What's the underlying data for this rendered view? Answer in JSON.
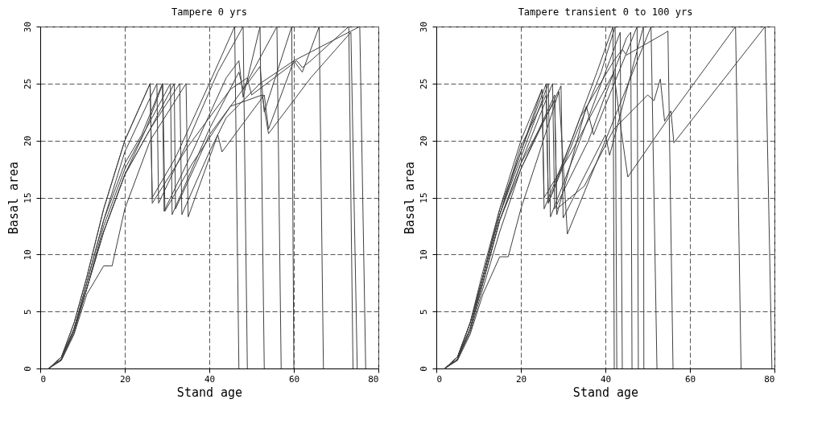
{
  "chart_data": [
    {
      "type": "line",
      "title": "Tampere 0 yrs",
      "xlabel": "Stand age",
      "ylabel": "Basal area",
      "xlim": [
        0,
        80
      ],
      "ylim": [
        0,
        30
      ],
      "xticks": [
        0,
        20,
        40,
        60,
        80
      ],
      "yticks": [
        0,
        5,
        10,
        15,
        20,
        25,
        30
      ],
      "grid": true,
      "series": [
        {
          "color": "#404040",
          "x": [
            2,
            5,
            8,
            11,
            15,
            20,
            26,
            26.5,
            32,
            40,
            46,
            47
          ],
          "values": [
            0,
            1,
            4,
            8,
            14,
            20,
            25,
            15,
            18.5,
            25,
            30,
            0
          ]
        },
        {
          "color": "#404040",
          "x": [
            2,
            5,
            8,
            11,
            15,
            20,
            27.6,
            28,
            35,
            42,
            48,
            49
          ],
          "values": [
            0,
            1,
            3.5,
            7.5,
            13,
            19,
            25,
            14.5,
            20,
            26,
            30,
            0
          ]
        },
        {
          "color": "#404040",
          "x": [
            2,
            5,
            8,
            11,
            15,
            20,
            24,
            28.9,
            29.3,
            36,
            44,
            47,
            48,
            52,
            53
          ],
          "values": [
            0,
            0.8,
            3.5,
            7.5,
            13,
            18,
            20.5,
            25,
            13.8,
            19,
            25.5,
            27,
            23.8,
            30,
            0
          ]
        },
        {
          "color": "#404040",
          "x": [
            2,
            5,
            8,
            11,
            15,
            20,
            25,
            30.8,
            31.2,
            40,
            47,
            48,
            56,
            57
          ],
          "values": [
            0,
            0.8,
            3.5,
            7,
            12.5,
            17.5,
            21,
            25,
            13.5,
            21,
            26,
            24.5,
            30,
            0
          ]
        },
        {
          "color": "#404040",
          "x": [
            2,
            5,
            8,
            11,
            15,
            20,
            26,
            31.7,
            32,
            40,
            52,
            53,
            59.5,
            60
          ],
          "values": [
            0,
            0.8,
            3.2,
            7,
            12,
            17,
            21,
            25,
            14,
            20.5,
            26.5,
            22.5,
            30,
            0
          ]
        },
        {
          "color": "#404040",
          "x": [
            2,
            5,
            8,
            11,
            15,
            17,
            20,
            26,
            34.5,
            35,
            42,
            43,
            53,
            54,
            60,
            62,
            66,
            67
          ],
          "values": [
            0,
            0.7,
            3,
            6.5,
            9,
            9,
            14,
            20,
            25,
            13.3,
            20.5,
            19,
            24,
            21,
            27,
            26,
            30,
            0
          ]
        },
        {
          "color": "#404040",
          "x": [
            2,
            5,
            8,
            11,
            15,
            20,
            26,
            26.5,
            35,
            45,
            49,
            50,
            60.7,
            62,
            64,
            73,
            74
          ],
          "values": [
            0,
            1,
            4,
            8,
            14,
            20,
            25,
            14.5,
            19.5,
            24.5,
            25.5,
            24,
            27,
            26.4,
            27,
            30,
            0
          ]
        },
        {
          "color": "#404040",
          "x": [
            2,
            5,
            8,
            11,
            15,
            20,
            25,
            29,
            29.5,
            36,
            45,
            52.5,
            54,
            64,
            73.5,
            75
          ],
          "values": [
            0,
            0.8,
            3.5,
            7,
            12,
            17,
            21,
            25,
            13.8,
            18,
            23,
            24,
            20.6,
            25.5,
            29.5,
            0
          ]
        },
        {
          "color": "#404040",
          "x": [
            2,
            5,
            8,
            11,
            15,
            20,
            26,
            33,
            33.5,
            40,
            44,
            52,
            60,
            75.6,
            77
          ],
          "values": [
            0,
            0.8,
            3.2,
            7,
            12,
            17,
            21,
            25,
            13.5,
            19,
            22,
            25,
            27,
            30,
            0
          ]
        }
      ]
    },
    {
      "type": "line",
      "title": "Tampere transient 0 to 100 yrs",
      "xlabel": "Stand age",
      "ylabel": "Basal area",
      "xlim": [
        0,
        80
      ],
      "ylim": [
        0,
        30
      ],
      "xticks": [
        0,
        20,
        40,
        60,
        80
      ],
      "yticks": [
        0,
        5,
        10,
        15,
        20,
        25,
        30
      ],
      "grid": true,
      "series": [
        {
          "color": "#404040",
          "x": [
            2,
            5,
            8,
            11,
            15,
            20,
            25,
            25.5,
            32,
            38,
            41.8,
            42.1
          ],
          "values": [
            0,
            1,
            4,
            8.5,
            14,
            20,
            24.5,
            14,
            20,
            26,
            30,
            0
          ]
        },
        {
          "color": "#404040",
          "x": [
            2,
            5,
            8,
            11,
            15,
            20,
            26,
            26.5,
            33,
            39,
            42.3,
            42.7
          ],
          "values": [
            0,
            1,
            4,
            8,
            13.5,
            19,
            25,
            14.5,
            20.5,
            26,
            30,
            0
          ]
        },
        {
          "color": "#404040",
          "x": [
            2,
            5,
            8,
            11,
            15,
            20,
            26.5,
            27,
            35,
            41,
            43.5,
            44
          ],
          "values": [
            0,
            1,
            3.5,
            8,
            13.5,
            18.5,
            25,
            13.3,
            21,
            27,
            29.5,
            0
          ]
        },
        {
          "color": "#404040",
          "x": [
            2,
            5,
            8,
            11,
            15,
            20,
            27.5,
            28,
            36,
            45,
            46,
            46.3
          ],
          "values": [
            0,
            0.8,
            3.5,
            7.5,
            13,
            18,
            25,
            14,
            20,
            29,
            29.5,
            0
          ]
        },
        {
          "color": "#404040",
          "x": [
            2,
            5,
            8,
            11,
            15,
            20,
            28,
            28.5,
            35.5,
            37.2,
            47.5,
            47.8
          ],
          "values": [
            0,
            0.8,
            3.5,
            7.5,
            13,
            17.5,
            24,
            13.5,
            23,
            20.5,
            30,
            0
          ]
        },
        {
          "color": "#404040",
          "x": [
            2,
            5,
            8,
            11,
            15,
            20,
            29.5,
            30,
            40,
            41,
            49,
            49.1
          ],
          "values": [
            0,
            0.8,
            3.2,
            7,
            12,
            17.5,
            24.8,
            13.2,
            20.5,
            18.7,
            30,
            0
          ]
        },
        {
          "color": "#404040",
          "x": [
            2,
            5,
            8,
            11,
            15,
            17,
            20,
            24,
            29,
            31,
            40,
            50.8,
            52.2
          ],
          "values": [
            0,
            0.7,
            3,
            6.5,
            9.8,
            9.8,
            14,
            18.5,
            24.3,
            11.8,
            20,
            30,
            0
          ]
        },
        {
          "color": "#404040",
          "x": [
            2,
            5,
            8,
            11,
            15,
            20,
            26,
            26.5,
            34,
            42,
            44,
            45,
            53.5,
            54.8,
            56
          ],
          "values": [
            0,
            1,
            4,
            8,
            13.5,
            19.5,
            24,
            14.5,
            22,
            27,
            28,
            27.5,
            29.3,
            29.6,
            0
          ]
        },
        {
          "color": "#404040",
          "x": [
            2,
            5,
            8,
            11,
            15,
            20,
            25,
            25.5,
            32,
            42,
            43.7,
            45.3,
            55,
            70.8,
            72.1
          ],
          "values": [
            0,
            1,
            4,
            8,
            14,
            19,
            24.5,
            15,
            19,
            26,
            21,
            16.8,
            22,
            30,
            0
          ]
        },
        {
          "color": "#404040",
          "x": [
            2,
            5,
            8,
            11,
            15,
            20,
            28,
            28.5,
            35,
            42,
            50,
            51.5,
            53,
            54,
            55.5,
            56.2,
            77.8,
            79.4
          ],
          "values": [
            0,
            0.8,
            3.5,
            7.5,
            13,
            18,
            23.5,
            14,
            16,
            21,
            24,
            23.5,
            25.4,
            21.7,
            22.6,
            19.8,
            30,
            0
          ]
        }
      ]
    }
  ]
}
